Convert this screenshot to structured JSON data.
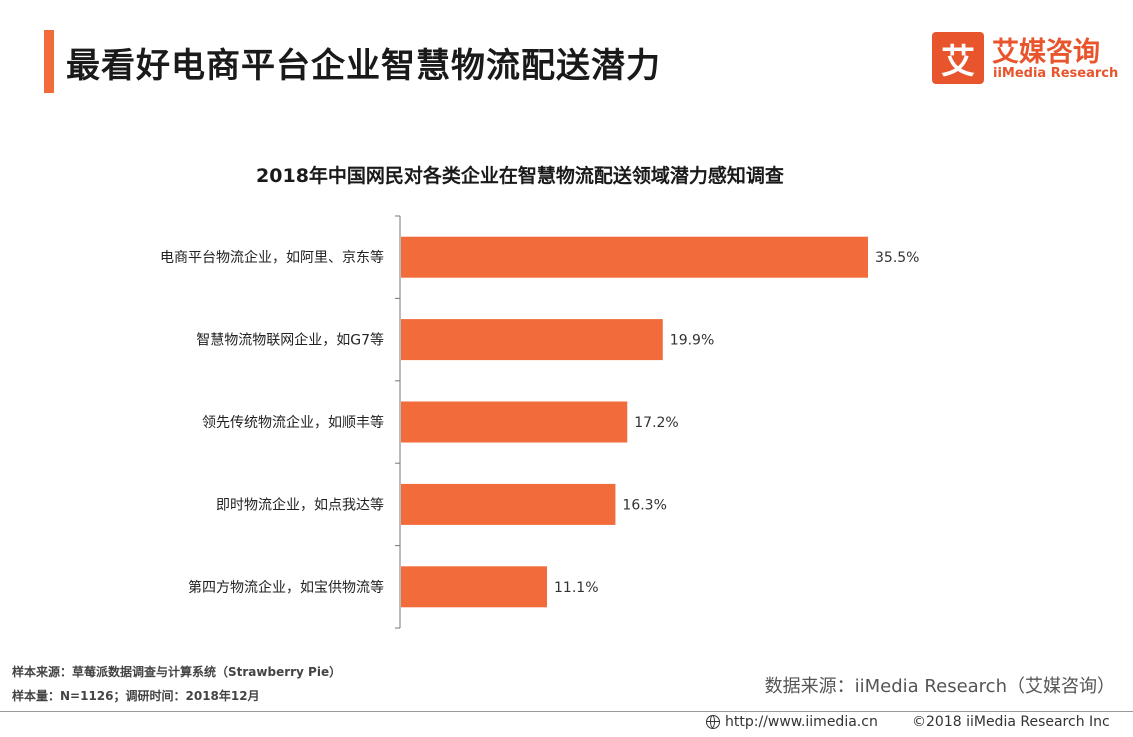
{
  "header": {
    "title": "最看好电商平台企业智慧物流配送潜力"
  },
  "logo": {
    "mark": "艾",
    "name_cn": "艾媒咨询",
    "name_en": "iiMedia Research"
  },
  "colors": {
    "accent": "#f26b3a",
    "bar": "#f26b3a",
    "logo": "#e8542c"
  },
  "chart_data": {
    "type": "bar",
    "orientation": "horizontal",
    "title": "2018年中国网民对各类企业在智慧物流配送领域潜力感知调查",
    "categories": [
      "电商平台物流企业，如阿里、京东等",
      "智慧物流物联网企业，如G7等",
      "领先传统物流企业，如顺丰等",
      "即时物流企业，如点我达等",
      "第四方物流企业，如宝供物流等"
    ],
    "values": [
      35.5,
      19.9,
      17.2,
      16.3,
      11.1
    ],
    "value_labels": [
      "35.5%",
      "19.9%",
      "17.2%",
      "16.3%",
      "11.1%"
    ],
    "unit": "%",
    "xlim": [
      0,
      40
    ],
    "grid": false,
    "legend": "none"
  },
  "footnotes": {
    "sample_source": "样本来源：草莓派数据调查与计算系统（Strawberry Pie）",
    "sample_size": "样本量：N=1126；调研时间：2018年12月"
  },
  "source": "数据来源：iiMedia Research（艾媒咨询）",
  "footer": {
    "url": "http://www.iimedia.cn",
    "copyright": "©2018  iiMedia Research  Inc"
  }
}
